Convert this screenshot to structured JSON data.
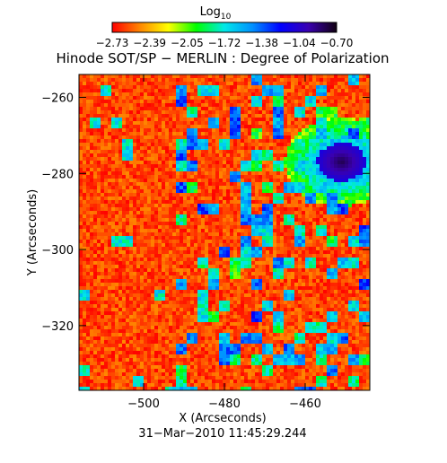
{
  "colorbar": {
    "label_base": "Log",
    "label_sub": "10",
    "ticks": [
      "−2.73",
      "−2.39",
      "−2.05",
      "−1.72",
      "−1.38",
      "−1.04",
      "−0.70"
    ],
    "range": [
      -2.73,
      -0.7
    ],
    "colormap": [
      "#ff0000",
      "#ff8800",
      "#ffff00",
      "#00ff00",
      "#00e8e8",
      "#0090ff",
      "#0000ff",
      "#3a00b0",
      "#100010"
    ]
  },
  "chart_data": {
    "type": "heatmap",
    "title": "Hinode SOT/SP − MERLIN : Degree of Polarization",
    "xlabel": "X (Arcseconds)",
    "ylabel": "Y (Arcseconds)",
    "xlim": [
      -516,
      -444
    ],
    "ylim": [
      -337,
      -254
    ],
    "xticks": [
      -500,
      -480,
      -460
    ],
    "xtick_labels": [
      "−500",
      "−480",
      "−460"
    ],
    "yticks": [
      -260,
      -280,
      -300,
      -320
    ],
    "ytick_labels": [
      "−260",
      "−280",
      "−300",
      "−320"
    ],
    "value_range": [
      -2.73,
      -0.7
    ],
    "value_label": "Log10 degree of polarization",
    "features": {
      "umbra": {
        "x": -451,
        "y": -277,
        "value": -0.8
      },
      "penumbra": {
        "x": -455,
        "y": -281,
        "value": -1.2
      },
      "background": -2.6
    },
    "grid": false,
    "timestamp": "31−Mar−2010 11:45:29.244"
  }
}
